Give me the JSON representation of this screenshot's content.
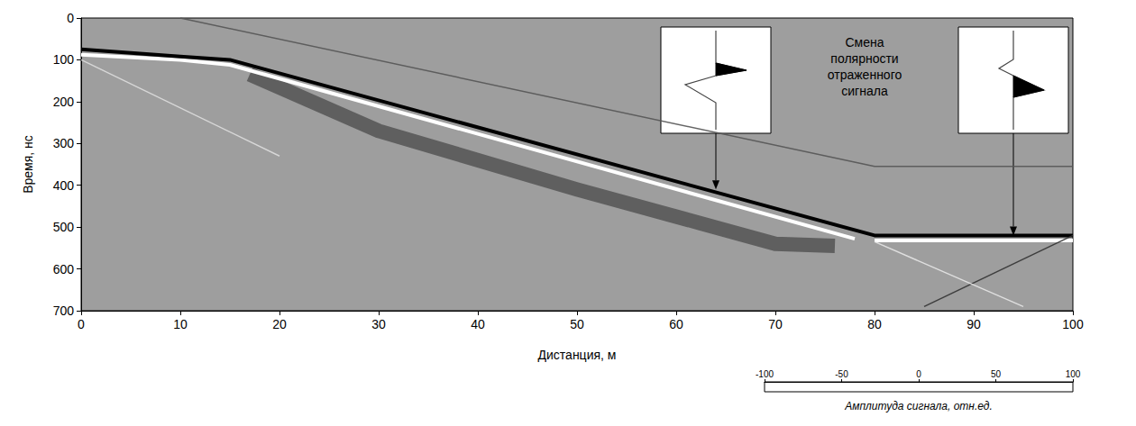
{
  "chart_data": {
    "type": "line",
    "x_label": "Дистанция, м",
    "y_label": "Время, нс",
    "xlim": [
      0,
      100
    ],
    "xticks": [
      0,
      10,
      20,
      30,
      40,
      50,
      60,
      70,
      80,
      90,
      100
    ],
    "ylim": [
      700,
      0
    ],
    "yticks": [
      0,
      100,
      200,
      300,
      400,
      500,
      600,
      700
    ],
    "series": [
      {
        "x": [
          17,
          30,
          50,
          70,
          76
        ],
        "values": [
          135,
          270,
          410,
          540,
          545
        ],
        "color": "#4a4a4a",
        "line_style": "band"
      },
      {
        "x": [
          0,
          10,
          15,
          78
        ],
        "values": [
          88,
          100,
          112,
          528
        ],
        "color": "#ffffff",
        "line_style": "thick"
      },
      {
        "x": [
          0,
          10,
          15,
          80,
          100
        ],
        "values": [
          75,
          92,
          100,
          520,
          520
        ],
        "color": "#000000",
        "line_style": "thick"
      },
      {
        "x": [
          80,
          100
        ],
        "values": [
          532,
          532
        ],
        "color": "#ffffff",
        "line_style": "thick"
      },
      {
        "x": [
          10,
          80,
          100
        ],
        "values": [
          0,
          355,
          355
        ],
        "color": "#555555",
        "line_style": "thin"
      },
      {
        "x": [
          0,
          20
        ],
        "values": [
          100,
          330
        ],
        "color": "#dddddd",
        "line_style": "thin"
      },
      {
        "x": [
          100,
          85
        ],
        "values": [
          520,
          690
        ],
        "color": "#333333",
        "line_style": "thin"
      },
      {
        "x": [
          80,
          95
        ],
        "values": [
          535,
          690
        ],
        "color": "#e6e6e6",
        "line_style": "thin"
      }
    ],
    "annotation": {
      "text": "Смена полярности отраженного сигнала",
      "points": [
        [
          64,
          410
        ],
        [
          94,
          520
        ]
      ]
    },
    "colorbar": {
      "label": "Амплитуда сигнала, отн.ед.",
      "range": [
        -100,
        100
      ],
      "ticks": [
        -100,
        -50,
        0,
        50,
        100
      ],
      "colors": [
        "#ffffff",
        "#000000"
      ]
    }
  }
}
